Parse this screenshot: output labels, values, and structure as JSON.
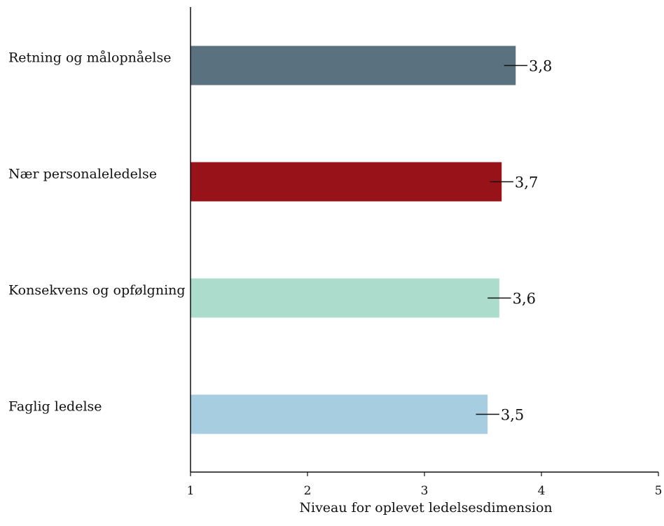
{
  "chart_data": {
    "type": "bar",
    "orientation": "horizontal",
    "categories": [
      "Retning og målopnåelse",
      "Nær personaleledelse",
      "Konsekvens og opfølgning",
      "Faglig ledelse"
    ],
    "values": [
      3.78,
      3.66,
      3.64,
      3.54
    ],
    "value_labels": [
      "3,8",
      "3,7",
      "3,6",
      "3,5"
    ],
    "error_half_width": [
      0.1,
      0.1,
      0.1,
      0.1
    ],
    "colors": [
      "#5a717f",
      "#971219",
      "#acdccc",
      "#a6cde0"
    ],
    "xlabel": "Niveau for oplevet ledelsesdimension",
    "ylabel": "",
    "title": "",
    "xlim": [
      1,
      5
    ],
    "xticks": [
      1,
      2,
      3,
      4,
      5
    ],
    "xtick_labels": [
      "1",
      "2",
      "3",
      "4",
      "5"
    ],
    "grid": false,
    "legend": "none"
  }
}
